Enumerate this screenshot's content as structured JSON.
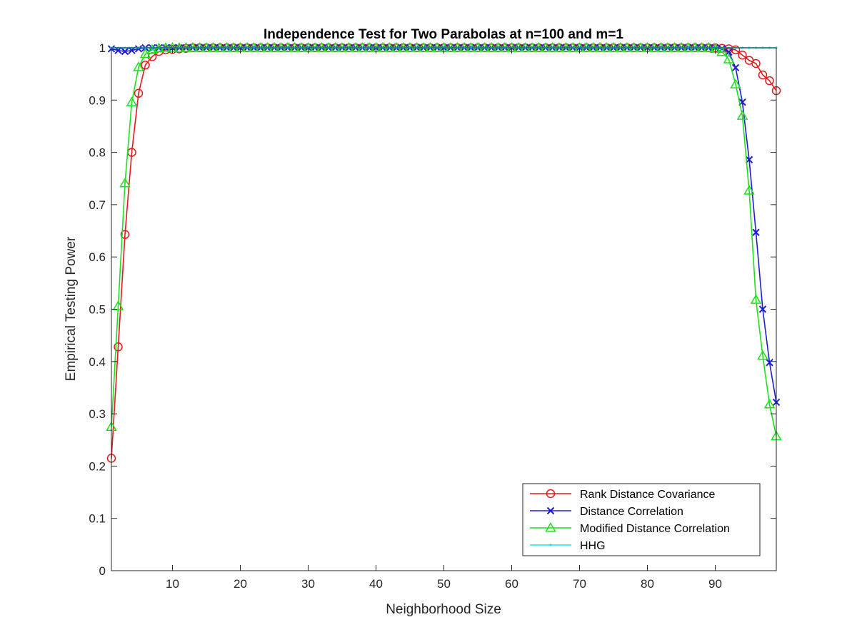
{
  "chart_data": {
    "type": "line",
    "title": "Independence Test for Two Parabolas at n=100 and m=1",
    "xlabel": "Neighborhood Size",
    "ylabel": "Empirical Testing Power",
    "xlim": [
      1,
      99
    ],
    "ylim": [
      0,
      1
    ],
    "xticks": [
      10,
      20,
      30,
      40,
      50,
      60,
      70,
      80,
      90
    ],
    "yticks": [
      0,
      0.1,
      0.2,
      0.3,
      0.4,
      0.5,
      0.6,
      0.7,
      0.8,
      0.9,
      1
    ],
    "ytick_labels": [
      "0",
      "0.1",
      "0.2",
      "0.3",
      "0.4",
      "0.5",
      "0.6",
      "0.7",
      "0.8",
      "0.9",
      "1"
    ],
    "grid": false,
    "legend_position": "bottom-right",
    "series": [
      {
        "name": "Rank Distance Covariance",
        "color": "#e41a1c",
        "marker": "circle",
        "points": [
          [
            1,
            0.215
          ],
          [
            2,
            0.428
          ],
          [
            3,
            0.643
          ],
          [
            4,
            0.8
          ],
          [
            5,
            0.913
          ],
          [
            6,
            0.967
          ],
          [
            7,
            0.983
          ],
          [
            8,
            0.993
          ],
          [
            9,
            0.996
          ],
          [
            10,
            0.997
          ],
          [
            11,
            0.998
          ],
          [
            12,
            0.999
          ],
          [
            13,
            1.0
          ],
          [
            14,
            1.0
          ],
          [
            15,
            1.0
          ],
          [
            90,
            1.0
          ],
          [
            91,
            0.999
          ],
          [
            92,
            0.998
          ],
          [
            93,
            0.996
          ],
          [
            94,
            0.986
          ],
          [
            95,
            0.976
          ],
          [
            96,
            0.97
          ],
          [
            97,
            0.948
          ],
          [
            98,
            0.937
          ],
          [
            99,
            0.918
          ]
        ]
      },
      {
        "name": "Distance Correlation",
        "color": "#1f1fd0",
        "marker": "x",
        "points": [
          [
            1,
            0.998
          ],
          [
            2,
            0.995
          ],
          [
            3,
            0.993
          ],
          [
            4,
            0.995
          ],
          [
            5,
            0.998
          ],
          [
            6,
            1.0
          ],
          [
            7,
            1.0
          ],
          [
            90,
            1.0
          ],
          [
            91,
            0.998
          ],
          [
            92,
            0.992
          ],
          [
            93,
            0.962
          ],
          [
            94,
            0.896
          ],
          [
            95,
            0.786
          ],
          [
            96,
            0.647
          ],
          [
            97,
            0.5
          ],
          [
            98,
            0.398
          ],
          [
            99,
            0.322
          ]
        ]
      },
      {
        "name": "Modified Distance Correlation",
        "color": "#1ee01e",
        "marker": "triangle",
        "points": [
          [
            1,
            0.275
          ],
          [
            2,
            0.506
          ],
          [
            3,
            0.741
          ],
          [
            4,
            0.896
          ],
          [
            5,
            0.963
          ],
          [
            6,
            0.988
          ],
          [
            7,
            0.996
          ],
          [
            8,
            0.999
          ],
          [
            9,
            1.0
          ],
          [
            10,
            1.0
          ],
          [
            89,
            1.0
          ],
          [
            90,
            0.998
          ],
          [
            91,
            0.992
          ],
          [
            92,
            0.978
          ],
          [
            93,
            0.93
          ],
          [
            94,
            0.87
          ],
          [
            95,
            0.727
          ],
          [
            96,
            0.518
          ],
          [
            97,
            0.411
          ],
          [
            98,
            0.318
          ],
          [
            99,
            0.257
          ]
        ]
      },
      {
        "name": "HHG",
        "color": "#22e0f0",
        "marker": "dot",
        "points": [
          [
            1,
            1.0
          ],
          [
            99,
            1.0
          ]
        ]
      }
    ]
  }
}
